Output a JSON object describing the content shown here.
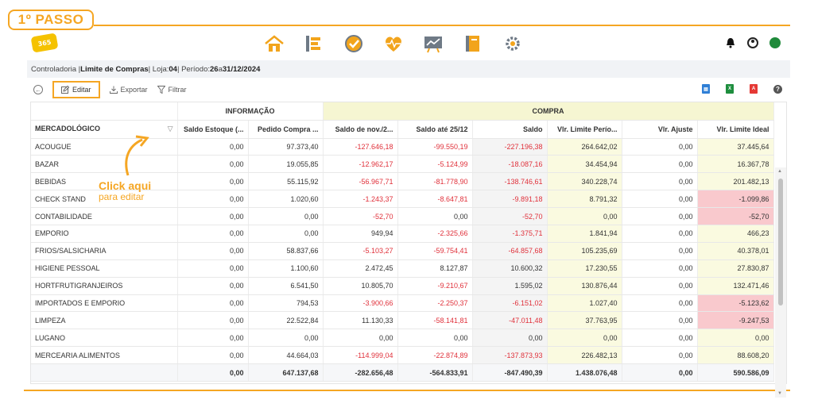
{
  "badge": "1º PASSO",
  "logo_text": "365",
  "nav_icons": [
    "home-icon",
    "list-icon",
    "check-circle-icon",
    "heart-pulse-icon",
    "chart-board-icon",
    "notebook-icon",
    "gear-network-icon"
  ],
  "breadcrumb": {
    "prefix": "Controladoria | ",
    "page": "Limite de Compras",
    "loja_label": " | Loja: ",
    "loja": "04",
    "periodo_label": " | Período: ",
    "periodo_start": "26",
    "periodo_sep": " a ",
    "periodo_end": "31/12/2024"
  },
  "toolbar": {
    "edit_label": "Editar",
    "export_label": "Exportar",
    "filter_label": "Filtrar"
  },
  "annotation": {
    "line1": "Click aqui",
    "line2": "para editar"
  },
  "table": {
    "group_info": "INFORMAÇÃO",
    "group_compra": "COMPRA",
    "columns": [
      "MERCADOLÓGICO",
      "Saldo Estoque (...",
      "Pedido Compra ...",
      "Saldo de nov./2...",
      "Saldo até 25/12",
      "Saldo",
      "Vlr. Limite Perío...",
      "Vlr. Ajuste",
      "Vlr. Limite Ideal"
    ],
    "rows": [
      [
        "ACOUGUE",
        "0,00",
        "97.373,40",
        "-127.646,18",
        "-99.550,19",
        "-227.196,38",
        "264.642,02",
        "0,00",
        "37.445,64"
      ],
      [
        "BAZAR",
        "0,00",
        "19.055,85",
        "-12.962,17",
        "-5.124,99",
        "-18.087,16",
        "34.454,94",
        "0,00",
        "16.367,78"
      ],
      [
        "BEBIDAS",
        "0,00",
        "55.115,92",
        "-56.967,71",
        "-81.778,90",
        "-138.746,61",
        "340.228,74",
        "0,00",
        "201.482,13"
      ],
      [
        "CHECK STAND",
        "0,00",
        "1.020,60",
        "-1.243,37",
        "-8.647,81",
        "-9.891,18",
        "8.791,32",
        "0,00",
        "-1.099,86"
      ],
      [
        "CONTABILIDADE",
        "0,00",
        "0,00",
        "-52,70",
        "0,00",
        "-52,70",
        "0,00",
        "0,00",
        "-52,70"
      ],
      [
        "EMPORIO",
        "0,00",
        "0,00",
        "949,94",
        "-2.325,66",
        "-1.375,71",
        "1.841,94",
        "0,00",
        "466,23"
      ],
      [
        "FRIOS/SALSICHARIA",
        "0,00",
        "58.837,66",
        "-5.103,27",
        "-59.754,41",
        "-64.857,68",
        "105.235,69",
        "0,00",
        "40.378,01"
      ],
      [
        "HIGIENE PESSOAL",
        "0,00",
        "1.100,60",
        "2.472,45",
        "8.127,87",
        "10.600,32",
        "17.230,55",
        "0,00",
        "27.830,87"
      ],
      [
        "HORTFRUTIGRANJEIROS",
        "0,00",
        "6.541,50",
        "10.805,70",
        "-9.210,67",
        "1.595,02",
        "130.876,44",
        "0,00",
        "132.471,46"
      ],
      [
        "IMPORTADOS E EMPORIO",
        "0,00",
        "794,53",
        "-3.900,66",
        "-2.250,37",
        "-6.151,02",
        "1.027,40",
        "0,00",
        "-5.123,62"
      ],
      [
        "LIMPEZA",
        "0,00",
        "22.522,84",
        "11.130,33",
        "-58.141,81",
        "-47.011,48",
        "37.763,95",
        "0,00",
        "-9.247,53"
      ],
      [
        "LUGANO",
        "0,00",
        "0,00",
        "0,00",
        "0,00",
        "0,00",
        "0,00",
        "0,00",
        "0,00"
      ],
      [
        "MERCEARIA ALIMENTOS",
        "0,00",
        "44.664,03",
        "-114.999,04",
        "-22.874,89",
        "-137.873,93",
        "226.482,13",
        "0,00",
        "88.608,20"
      ]
    ],
    "totals": [
      "",
      "0,00",
      "647.137,68",
      "-282.656,48",
      "-564.833,91",
      "-847.490,39",
      "1.438.076,48",
      "0,00",
      "590.586,09"
    ]
  },
  "colors": {
    "accent": "#f5a623",
    "negative": "#e0313b",
    "compra_bg": "#f6f6d2",
    "neg_ideal_bg": "#f9c9cd"
  }
}
